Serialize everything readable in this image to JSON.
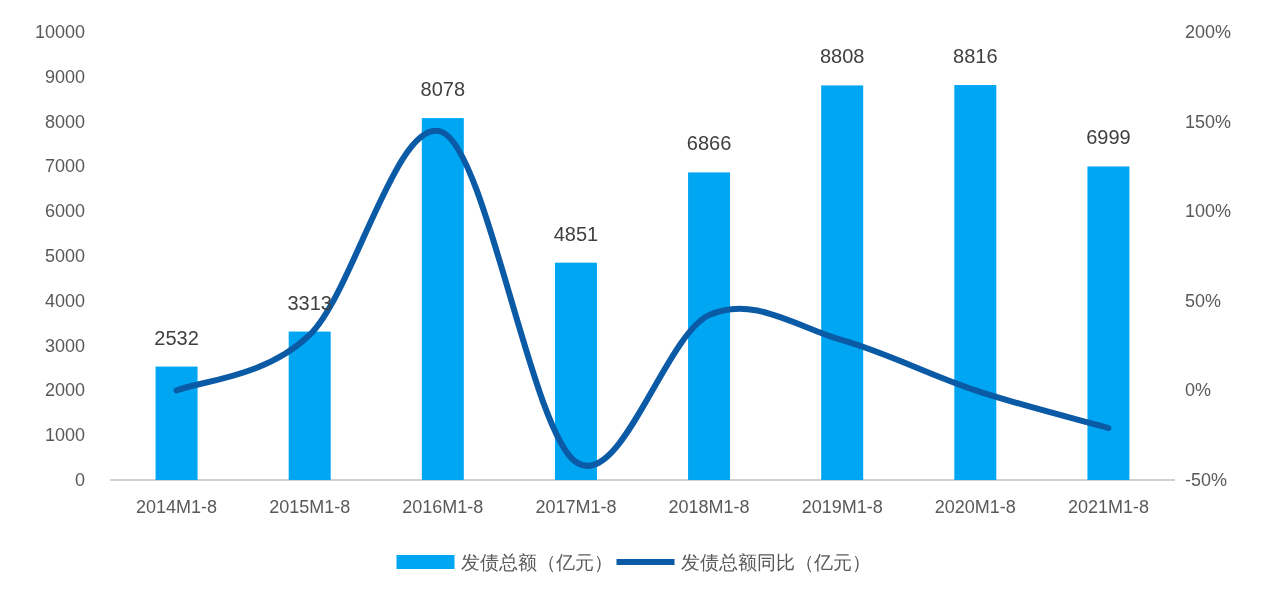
{
  "chart_data": {
    "type": "bar",
    "categories": [
      "2014M1-8",
      "2015M1-8",
      "2016M1-8",
      "2017M1-8",
      "2018M1-8",
      "2019M1-8",
      "2020M1-8",
      "2021M1-8"
    ],
    "series": [
      {
        "name": "发债总额（亿元）",
        "color": "#00a6f2",
        "values": [
          2532,
          3313,
          8078,
          4851,
          6866,
          8808,
          8816,
          6999
        ],
        "value_labels": [
          "2532",
          "3313",
          "8078",
          "4851",
          "6866",
          "8808",
          "8816",
          "6999"
        ]
      },
      {
        "name": "发债总额同比（亿元）",
        "type": "line",
        "axis": "y2",
        "color": "#0a5aa6",
        "values": [
          0,
          31,
          144,
          -40,
          42,
          28,
          0,
          -21
        ]
      }
    ],
    "ylim": [
      0,
      10000
    ],
    "yticks": [
      0,
      1000,
      2000,
      3000,
      4000,
      5000,
      6000,
      7000,
      8000,
      9000,
      10000
    ],
    "y2lim": [
      -50,
      200
    ],
    "y2ticks": [
      {
        "value": -50,
        "label": "-50%"
      },
      {
        "value": 0,
        "label": "0%"
      },
      {
        "value": 50,
        "label": "50%"
      },
      {
        "value": 100,
        "label": "100%"
      },
      {
        "value": 150,
        "label": "150%"
      },
      {
        "value": 200,
        "label": "200%"
      }
    ],
    "grid": false,
    "legend": "bottom"
  }
}
